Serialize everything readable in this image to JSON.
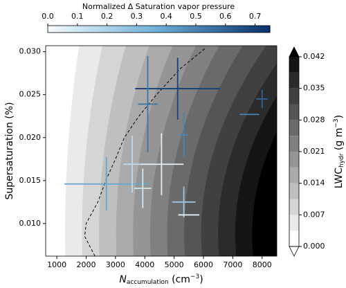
{
  "chart_data": {
    "type": "contour_scatter",
    "x_label": [
      "N",
      "accumulation",
      " (cm",
      "−3",
      ")"
    ],
    "y_label": "Supersaturation (%)",
    "xlim": [
      620,
      8500
    ],
    "ylim": [
      0.0062,
      0.0307
    ],
    "xticks": [
      1000,
      2000,
      3000,
      4000,
      5000,
      6000,
      7000,
      8000
    ],
    "yticks": [
      {
        "value": 0.01,
        "label": "0.010"
      },
      0.015,
      {
        "value": 0.02,
        "label": "0.020"
      },
      0.025,
      {
        "value": 0.03,
        "label": "0.030"
      }
    ],
    "x": [
      5120,
      4100,
      2690,
      4570,
      3930,
      3570,
      5330,
      5330,
      5500,
      7570,
      8000
    ],
    "y": [
      0.0257,
      0.0239,
      0.0146,
      0.0169,
      0.0141,
      0.0169,
      0.0203,
      0.0125,
      0.011,
      0.0227,
      0.0245
    ],
    "xerr": [
      1450,
      330,
      1430,
      750,
      290,
      300,
      150,
      400,
      360,
      330,
      200
    ],
    "yerr": [
      0.0036,
      0.0056,
      0.0031,
      0.0036,
      0.0023,
      0.0033,
      0.0026,
      0.0018,
      0,
      0,
      0.0011
    ],
    "color_values": [
      0.7,
      0.55,
      0.4,
      0.05,
      0.1,
      0.15,
      0.5,
      0.25,
      0.05,
      0.5,
      0.6
    ],
    "dashed_line": {
      "x": [
        2300,
        1950,
        2000,
        2400,
        2670,
        3000,
        3300,
        3800,
        4400,
        5200,
        6100
      ],
      "y": [
        0.0062,
        0.0085,
        0.01,
        0.0125,
        0.015,
        0.0175,
        0.02,
        0.0225,
        0.025,
        0.028,
        0.0305
      ]
    },
    "colorbar": {
      "label": "Normalized Δ Saturation vapor pressure",
      "lim": [
        0,
        0.75
      ],
      "ticks": [
        {
          "value": 0,
          "label": "0.0"
        },
        0.1,
        0.2,
        0.3,
        0.4,
        0.5,
        0.6,
        0.7
      ],
      "colors": [
        "#f7fbff",
        "#6baed6",
        "#08306b"
      ]
    },
    "lwc_colorbar": {
      "label": [
        "LWC",
        "hydr",
        " (g m",
        "−3",
        ")"
      ],
      "lim": [
        0,
        0.042
      ],
      "levels": [
        0,
        0.0035,
        0.007,
        0.0105,
        0.014,
        0.0175,
        0.021,
        0.0245,
        0.028,
        0.0315,
        0.035,
        0.0385,
        0.042
      ],
      "ticks": [
        {
          "value": 0,
          "label": "0.000"
        },
        0.007,
        0.014,
        0.021,
        0.028,
        0.035,
        0.042
      ],
      "colors": [
        "#ffffff",
        "#000000"
      ]
    }
  }
}
